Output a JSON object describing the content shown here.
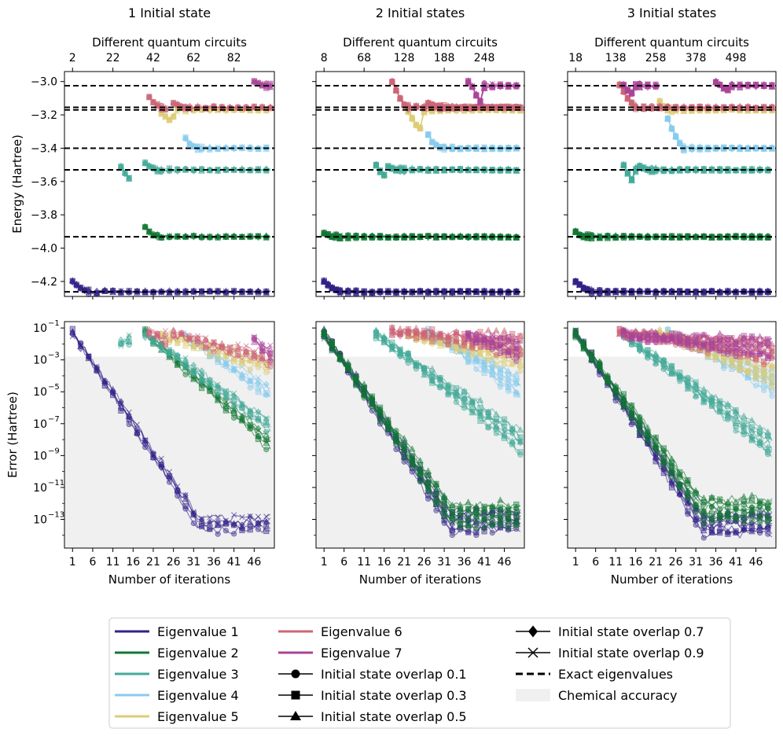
{
  "colors": {
    "eig1": "#332288",
    "eig2": "#117733",
    "eig3": "#44AA99",
    "eig4": "#88CCEE",
    "eig5": "#DDCC77",
    "eig6": "#CC6677",
    "eig7": "#AA4499",
    "exact": "#000000",
    "chem_acc": "#f0f0f0"
  },
  "chart_data": [
    {
      "type": "line",
      "panel": "energy",
      "title": "1 Initial state",
      "ylabel": "Energy (Hartree)",
      "top_xlabel": "Different quantum circuits",
      "top_ticks": [
        "2",
        "22",
        "42",
        "62",
        "82"
      ],
      "xlim": [
        -1,
        51
      ],
      "ylim": [
        -4.29,
        -2.94
      ],
      "yticks": [
        "−3.0",
        "−3.2",
        "−3.4",
        "−3.6",
        "−3.8",
        "−4.0",
        "−4.2"
      ],
      "ytick_values": [
        -3.0,
        -3.2,
        -3.4,
        -3.6,
        -3.8,
        -4.0,
        -4.2
      ],
      "exact_eigenvalues": [
        -4.262,
        -3.932,
        -3.53,
        -3.4,
        -3.17,
        -3.155,
        -3.025
      ],
      "series": [
        {
          "name": "Eigenvalue 1",
          "start": 1,
          "end": 50,
          "first": [
            -4.2,
            -4.22,
            -4.24,
            -4.25
          ]
        },
        {
          "name": "Eigenvalue 2",
          "start": 19,
          "end": 50,
          "first": [
            -3.87,
            -3.9,
            -3.92
          ]
        },
        {
          "name": "Eigenvalue 3",
          "start": 13,
          "end": 15,
          "first": [
            -3.51,
            -3.55,
            -3.58
          ]
        },
        {
          "name": "Eigenvalue 3",
          "start": 19,
          "end": 50,
          "first": [
            -3.49,
            -3.51,
            -3.52
          ]
        },
        {
          "name": "Eigenvalue 4",
          "start": 29,
          "end": 50,
          "first": [
            -3.34,
            -3.37,
            -3.39
          ]
        },
        {
          "name": "Eigenvalue 5",
          "start": 23,
          "end": 50,
          "first": [
            -3.19,
            -3.21,
            -3.23,
            -3.21
          ]
        },
        {
          "name": "Eigenvalue 6",
          "start": 20,
          "end": 24,
          "first": [
            -3.09,
            -3.12,
            -3.14
          ]
        },
        {
          "name": "Eigenvalue 6",
          "start": 26,
          "end": 50,
          "first": [
            -3.13,
            -3.14,
            -3.15
          ]
        },
        {
          "name": "Eigenvalue 7",
          "start": 46,
          "end": 50,
          "first": [
            -3.0,
            -3.01,
            -3.02
          ]
        }
      ]
    },
    {
      "type": "line",
      "panel": "energy",
      "title": "2 Initial states",
      "top_xlabel": "Different quantum circuits",
      "top_ticks": [
        "8",
        "68",
        "128",
        "188",
        "248"
      ],
      "xlim": [
        -1,
        51
      ],
      "ylim": [
        -4.29,
        -2.94
      ],
      "exact_eigenvalues": [
        -4.262,
        -3.932,
        -3.53,
        -3.4,
        -3.17,
        -3.155,
        -3.025
      ],
      "series": [
        {
          "name": "Eigenvalue 1",
          "start": 1,
          "end": 50,
          "first": [
            -4.2,
            -4.22,
            -4.24,
            -4.25
          ]
        },
        {
          "name": "Eigenvalue 2",
          "start": 1,
          "end": 50,
          "first": [
            -3.91,
            -3.92,
            -3.93
          ]
        },
        {
          "name": "Eigenvalue 3",
          "start": 14,
          "end": 16,
          "first": [
            -3.5,
            -3.54,
            -3.56
          ]
        },
        {
          "name": "Eigenvalue 3",
          "start": 17,
          "end": 50,
          "first": [
            -3.51,
            -3.52,
            -3.53
          ]
        },
        {
          "name": "Eigenvalue 4",
          "start": 27,
          "end": 50,
          "first": [
            -3.32,
            -3.36,
            -3.38
          ]
        },
        {
          "name": "Eigenvalue 5",
          "start": 22,
          "end": 50,
          "first": [
            -3.18,
            -3.22,
            -3.26,
            -3.28
          ]
        },
        {
          "name": "Eigenvalue 6",
          "start": 18,
          "end": 50,
          "first": [
            -3.0,
            -3.05,
            -3.1,
            -3.14
          ]
        },
        {
          "name": "Eigenvalue 6",
          "start": 27,
          "end": 50,
          "first": [
            -3.13,
            -3.14,
            -3.15
          ]
        },
        {
          "name": "Eigenvalue 7",
          "start": 37,
          "end": 50,
          "first": [
            -3.0,
            -3.03,
            -3.08,
            -3.12
          ]
        }
      ]
    },
    {
      "type": "line",
      "panel": "energy",
      "title": "3 Initial states",
      "top_xlabel": "Different quantum circuits",
      "top_ticks": [
        "18",
        "138",
        "258",
        "378",
        "498"
      ],
      "xlim": [
        -1,
        51
      ],
      "ylim": [
        -4.29,
        -2.94
      ],
      "exact_eigenvalues": [
        -4.262,
        -3.932,
        -3.53,
        -3.4,
        -3.17,
        -3.155,
        -3.025
      ],
      "series": [
        {
          "name": "Eigenvalue 1",
          "start": 1,
          "end": 50,
          "first": [
            -4.2,
            -4.22,
            -4.24,
            -4.25
          ]
        },
        {
          "name": "Eigenvalue 2",
          "start": 1,
          "end": 50,
          "first": [
            -3.9,
            -3.92,
            -3.93
          ]
        },
        {
          "name": "Eigenvalue 3",
          "start": 13,
          "end": 16,
          "first": [
            -3.5,
            -3.55,
            -3.59
          ]
        },
        {
          "name": "Eigenvalue 3",
          "start": 17,
          "end": 50,
          "first": [
            -3.51,
            -3.52,
            -3.53
          ]
        },
        {
          "name": "Eigenvalue 4",
          "start": 24,
          "end": 50,
          "first": [
            -3.22,
            -3.28,
            -3.33,
            -3.37
          ]
        },
        {
          "name": "Eigenvalue 5",
          "start": 22,
          "end": 50,
          "first": [
            -3.12,
            -3.15,
            -3.17
          ]
        },
        {
          "name": "Eigenvalue 6",
          "start": 12,
          "end": 50,
          "first": [
            -3.02,
            -3.06,
            -3.1,
            -3.13
          ]
        },
        {
          "name": "Eigenvalue 7",
          "start": 13,
          "end": 22,
          "first": [
            -3.02,
            -3.05,
            -3.07
          ]
        },
        {
          "name": "Eigenvalue 7",
          "start": 36,
          "end": 50,
          "first": [
            -3.0,
            -3.02,
            -3.04,
            -3.05
          ]
        }
      ]
    },
    {
      "type": "line",
      "panel": "error",
      "xlabel": "Number of iterations",
      "ylabel": "Error (Hartree)",
      "log_scale": true,
      "ylim_log10": [
        -14.8,
        -0.6
      ],
      "chemical_accuracy": 0.0016,
      "xticks": [
        "1",
        "6",
        "11",
        "16",
        "21",
        "26",
        "31",
        "36",
        "41",
        "46"
      ],
      "xtick_values": [
        1,
        6,
        11,
        16,
        21,
        26,
        31,
        36,
        41,
        46
      ],
      "yticks_exp": [
        "−1",
        "−3",
        "−5",
        "−7",
        "−9",
        "−11",
        "−13"
      ],
      "ytick_values_log10": [
        -1,
        -3,
        -5,
        -7,
        -9,
        -11,
        -13
      ],
      "series": [
        {
          "name": "Eigenvalue 1",
          "start": 1,
          "end": 50,
          "log10_start": -1.3,
          "log10_end": -13.2
        },
        {
          "name": "Eigenvalue 2",
          "start": 19,
          "end": 50,
          "log10_start": -1.3,
          "log10_end": -8.2
        },
        {
          "name": "Eigenvalue 3",
          "start": 13,
          "end": 15,
          "log10_start": -1.9,
          "log10_end": -1.6
        },
        {
          "name": "Eigenvalue 3",
          "start": 19,
          "end": 50,
          "log10_start": -1.4,
          "log10_end": -7.1
        },
        {
          "name": "Eigenvalue 4",
          "start": 29,
          "end": 50,
          "log10_start": -1.6,
          "log10_end": -5.0
        },
        {
          "name": "Eigenvalue 5",
          "start": 23,
          "end": 50,
          "log10_start": -1.5,
          "log10_end": -3.3
        },
        {
          "name": "Eigenvalue 6",
          "start": 20,
          "end": 24,
          "log10_start": -1.3,
          "log10_end": -1.7
        },
        {
          "name": "Eigenvalue 6",
          "start": 26,
          "end": 50,
          "log10_start": -1.4,
          "log10_end": -2.9
        },
        {
          "name": "Eigenvalue 7",
          "start": 46,
          "end": 50,
          "log10_start": -1.7,
          "log10_end": -2.5
        }
      ]
    },
    {
      "type": "line",
      "panel": "error",
      "xlabel": "Number of iterations",
      "log_scale": true,
      "ylim_log10": [
        -14.8,
        -0.6
      ],
      "chemical_accuracy": 0.0016,
      "xticks": [
        "1",
        "6",
        "11",
        "16",
        "21",
        "26",
        "31",
        "36",
        "41",
        "46"
      ],
      "xtick_values": [
        1,
        6,
        11,
        16,
        21,
        26,
        31,
        36,
        41,
        46
      ],
      "series": [
        {
          "name": "Eigenvalue 1",
          "start": 1,
          "end": 50,
          "log10_start": -1.3,
          "log10_end": -13.0
        },
        {
          "name": "Eigenvalue 2",
          "start": 1,
          "end": 50,
          "log10_start": -1.4,
          "log10_end": -12.6
        },
        {
          "name": "Eigenvalue 3",
          "start": 14,
          "end": 50,
          "log10_start": -1.4,
          "log10_end": -8.0
        },
        {
          "name": "Eigenvalue 4",
          "start": 27,
          "end": 50,
          "log10_start": -1.3,
          "log10_end": -4.6
        },
        {
          "name": "Eigenvalue 5",
          "start": 22,
          "end": 50,
          "log10_start": -1.4,
          "log10_end": -2.8
        },
        {
          "name": "Eigenvalue 6",
          "start": 18,
          "end": 50,
          "log10_start": -1.2,
          "log10_end": -2.0
        },
        {
          "name": "Eigenvalue 7",
          "start": 37,
          "end": 50,
          "log10_start": -1.5,
          "log10_end": -2.3
        }
      ]
    },
    {
      "type": "line",
      "panel": "error",
      "xlabel": "Number of iterations",
      "log_scale": true,
      "ylim_log10": [
        -14.8,
        -0.6
      ],
      "chemical_accuracy": 0.0016,
      "xticks": [
        "1",
        "6",
        "11",
        "16",
        "21",
        "26",
        "31",
        "36",
        "41",
        "46"
      ],
      "xtick_values": [
        1,
        6,
        11,
        16,
        21,
        26,
        31,
        36,
        41,
        46
      ],
      "series": [
        {
          "name": "Eigenvalue 1",
          "start": 1,
          "end": 50,
          "log10_start": -1.3,
          "log10_end": -13.2
        },
        {
          "name": "Eigenvalue 2",
          "start": 1,
          "end": 50,
          "log10_start": -1.4,
          "log10_end": -12.3
        },
        {
          "name": "Eigenvalue 3",
          "start": 13,
          "end": 50,
          "log10_start": -1.4,
          "log10_end": -8.4
        },
        {
          "name": "Eigenvalue 4",
          "start": 24,
          "end": 50,
          "log10_start": -1.3,
          "log10_end": -4.3
        },
        {
          "name": "Eigenvalue 5",
          "start": 22,
          "end": 50,
          "log10_start": -1.3,
          "log10_end": -3.8
        },
        {
          "name": "Eigenvalue 6",
          "start": 12,
          "end": 50,
          "log10_start": -1.3,
          "log10_end": -2.4
        },
        {
          "name": "Eigenvalue 7",
          "start": 13,
          "end": 50,
          "log10_start": -1.4,
          "log10_end": -2.2
        }
      ]
    }
  ],
  "legend": {
    "items": [
      {
        "label": "Eigenvalue 1",
        "kind": "line",
        "color": "eig1"
      },
      {
        "label": "Eigenvalue 2",
        "kind": "line",
        "color": "eig2"
      },
      {
        "label": "Eigenvalue 3",
        "kind": "line",
        "color": "eig3"
      },
      {
        "label": "Eigenvalue 4",
        "kind": "line",
        "color": "eig4"
      },
      {
        "label": "Eigenvalue 5",
        "kind": "line",
        "color": "eig5"
      },
      {
        "label": "Eigenvalue 6",
        "kind": "line",
        "color": "eig6"
      },
      {
        "label": "Eigenvalue 7",
        "kind": "line",
        "color": "eig7"
      },
      {
        "label": "Initial state overlap 0.1",
        "kind": "marker",
        "marker": "circle"
      },
      {
        "label": "Initial state overlap 0.3",
        "kind": "marker",
        "marker": "square"
      },
      {
        "label": "Initial state overlap 0.5",
        "kind": "marker",
        "marker": "triangle"
      },
      {
        "label": "Initial state overlap 0.7",
        "kind": "marker",
        "marker": "diamond"
      },
      {
        "label": "Initial state overlap 0.9",
        "kind": "marker",
        "marker": "x"
      },
      {
        "label": "Exact eigenvalues",
        "kind": "dashed"
      },
      {
        "label": "Chemical accuracy",
        "kind": "patch"
      }
    ]
  }
}
